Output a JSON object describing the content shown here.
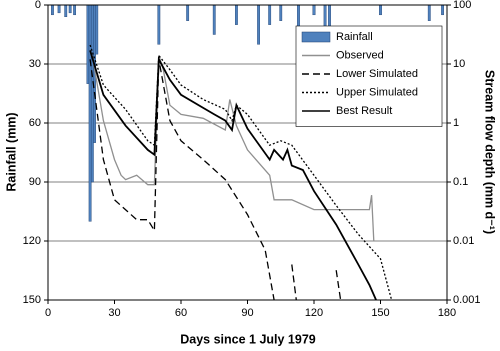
{
  "chart_data": {
    "type": "combo",
    "x_label": "Days since 1 July 1979",
    "y_label": "Rainfall (mm)",
    "y2_label": "Stream flow depth (mm d⁻¹)",
    "xlim": [
      0,
      180
    ],
    "xticks": [
      0,
      30,
      60,
      90,
      120,
      150,
      180
    ],
    "ylim": [
      150,
      0
    ],
    "yticks": [
      0,
      30,
      60,
      90,
      120,
      150
    ],
    "y2lim": [
      0.001,
      100
    ],
    "y2ticks": [
      100,
      10,
      1,
      0.1,
      0.01,
      0.001
    ],
    "y2log": true,
    "grid": true,
    "legend": "upper right",
    "series": [
      {
        "name": "Rainfall",
        "type": "bar",
        "axis": "y",
        "color": "#4f81bd",
        "x": [
          2,
          5,
          8,
          10,
          12,
          18,
          19,
          20,
          21,
          22,
          50,
          63,
          75,
          85,
          95,
          100,
          105,
          113,
          120,
          125,
          127,
          150,
          172,
          178
        ],
        "values": [
          5,
          4,
          6,
          4,
          5,
          40,
          110,
          90,
          70,
          25,
          20,
          8,
          15,
          10,
          20,
          10,
          8,
          15,
          5,
          12,
          20,
          5,
          8,
          5
        ]
      },
      {
        "name": "Observed",
        "type": "line",
        "axis": "y2",
        "color": "#909090",
        "dash": "solid",
        "x": [
          20,
          25,
          30,
          33,
          35,
          40,
          45,
          48,
          50,
          52,
          55,
          60,
          70,
          80,
          82,
          85,
          90,
          100,
          102,
          110,
          120,
          130,
          135,
          145,
          146,
          147
        ],
        "values": [
          14,
          1.1,
          0.24,
          0.13,
          0.11,
          0.13,
          0.09,
          0.09,
          14,
          8,
          2,
          1.4,
          1.2,
          0.76,
          2.5,
          0.9,
          0.35,
          0.13,
          0.05,
          0.05,
          0.034,
          0.034,
          0.034,
          0.034,
          0.06,
          0.01
        ]
      },
      {
        "name": "Lower Simulated",
        "type": "line",
        "axis": "y2",
        "color": "#000000",
        "dash": "dashed",
        "x": [
          19,
          25,
          30,
          40,
          45,
          48,
          50,
          55,
          60,
          70,
          80,
          90,
          98,
          102,
          104,
          110,
          112,
          114,
          130,
          132
        ],
        "values": [
          12,
          0.24,
          0.05,
          0.023,
          0.023,
          0.015,
          12,
          1.1,
          0.5,
          0.24,
          0.11,
          0.028,
          0.007,
          0.001,
          null,
          0.004,
          0.001,
          null,
          0.0032,
          0.001
        ]
      },
      {
        "name": "Upper Simulated",
        "type": "line",
        "axis": "y2",
        "color": "#000000",
        "dash": "dotted",
        "x": [
          19,
          25,
          35,
          45,
          48,
          50,
          55,
          60,
          70,
          80,
          83,
          85,
          90,
          100,
          105,
          110,
          120,
          130,
          140,
          150,
          155
        ],
        "values": [
          21,
          4.4,
          1.7,
          0.5,
          0.42,
          14,
          8,
          4.4,
          2.5,
          1.7,
          1.1,
          2,
          1.4,
          0.42,
          0.5,
          0.42,
          0.13,
          0.04,
          0.013,
          0.005,
          0.001
        ]
      },
      {
        "name": "Best Result",
        "type": "line",
        "axis": "y2",
        "color": "#000000",
        "dash": "solid",
        "x": [
          19,
          25,
          35,
          45,
          48,
          50,
          55,
          60,
          70,
          75,
          80,
          83,
          85,
          90,
          100,
          102,
          106,
          108,
          110,
          115,
          120,
          130,
          140,
          145,
          148
        ],
        "values": [
          17,
          3,
          0.9,
          0.35,
          0.29,
          12,
          5.4,
          3,
          1.8,
          1.4,
          1.1,
          0.76,
          2,
          0.8,
          0.24,
          0.35,
          0.24,
          0.35,
          0.19,
          0.16,
          0.07,
          0.019,
          0.004,
          0.0018,
          0.001
        ]
      }
    ]
  }
}
